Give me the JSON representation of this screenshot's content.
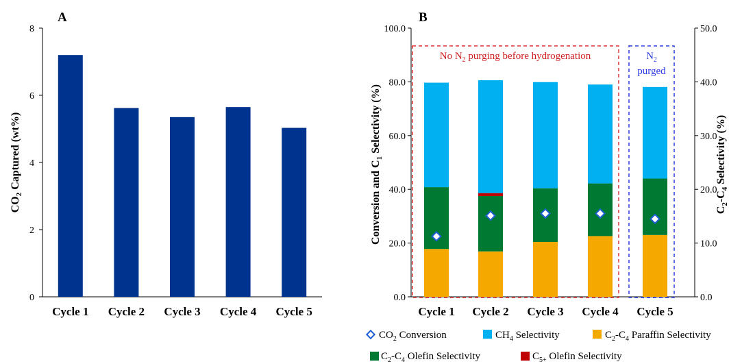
{
  "colors": {
    "bar_a": "#00338d",
    "ch4": "#00b0f0",
    "paraffin": "#f5a800",
    "olefin": "#007a33",
    "c5": "#c00000",
    "co2_marker": "#1f5fd6",
    "box_red": "#e03030",
    "box_blue": "#2a3de0"
  },
  "chart_data": [
    {
      "panel": "A",
      "type": "bar",
      "categories": [
        "Cycle 1",
        "Cycle 2",
        "Cycle 3",
        "Cycle 4",
        "Cycle 5"
      ],
      "values": [
        7.2,
        5.62,
        5.35,
        5.65,
        5.03
      ],
      "ylabel": {
        "pre": "CO",
        "sub": "2",
        "post": " Captured (wt%)"
      },
      "ylim": [
        0,
        8
      ],
      "yticks": [
        "0",
        "2",
        "4",
        "6",
        "8"
      ]
    },
    {
      "panel": "B",
      "type": "bar",
      "stacked": true,
      "categories": [
        "Cycle 1",
        "Cycle 2",
        "Cycle 3",
        "Cycle 4",
        "Cycle 5"
      ],
      "ylim": [
        0,
        100
      ],
      "yticks": [
        "0.0",
        "20.0",
        "40.0",
        "60.0",
        "80.0",
        "100.0"
      ],
      "y2lim": [
        0,
        50
      ],
      "y2ticks": [
        "0.0",
        "10.0",
        "20.0",
        "30.0",
        "40.0",
        "50.0"
      ],
      "ylabel": {
        "pre": "Conversion and C",
        "sub": "1",
        "post": " Selectivity (%)"
      },
      "y2label": {
        "pre": "C",
        "sub": "2",
        "mid": "-C",
        "sub2": "4",
        "post": " Selectivity (%)"
      },
      "series": [
        {
          "key": "paraffin",
          "name_parts": [
            "C",
            "2",
            "-C",
            "4",
            " Paraffin Selectivity"
          ],
          "values": [
            17.8,
            16.9,
            20.4,
            22.6,
            23.0
          ]
        },
        {
          "key": "olefin",
          "name_parts": [
            "C",
            "2",
            "-C",
            "4",
            " Olefin Selectivity"
          ],
          "values": [
            23.0,
            20.6,
            20.0,
            19.6,
            21.0
          ]
        },
        {
          "key": "c5",
          "name_parts": [
            "C",
            "5+",
            "",
            "",
            " Olefin Selectivity"
          ],
          "values": [
            0,
            1.1,
            0,
            0,
            0
          ]
        },
        {
          "key": "ch4",
          "name_parts": [
            "CH",
            "4",
            "",
            "",
            " Selectivity"
          ],
          "values": [
            38.9,
            42.0,
            39.5,
            36.8,
            34.1
          ]
        }
      ],
      "markers": {
        "name_parts": [
          "CO",
          "2",
          " Conversion"
        ],
        "values": [
          22.5,
          30.2,
          31.0,
          31.0,
          29.0
        ]
      },
      "annotations": {
        "no_purge": {
          "pre": "No N",
          "sub": "2",
          "post": " purging before hydrogenation"
        },
        "purged_line1": {
          "pre": "N",
          "sub": "2"
        },
        "purged_line2": "purged"
      }
    }
  ]
}
